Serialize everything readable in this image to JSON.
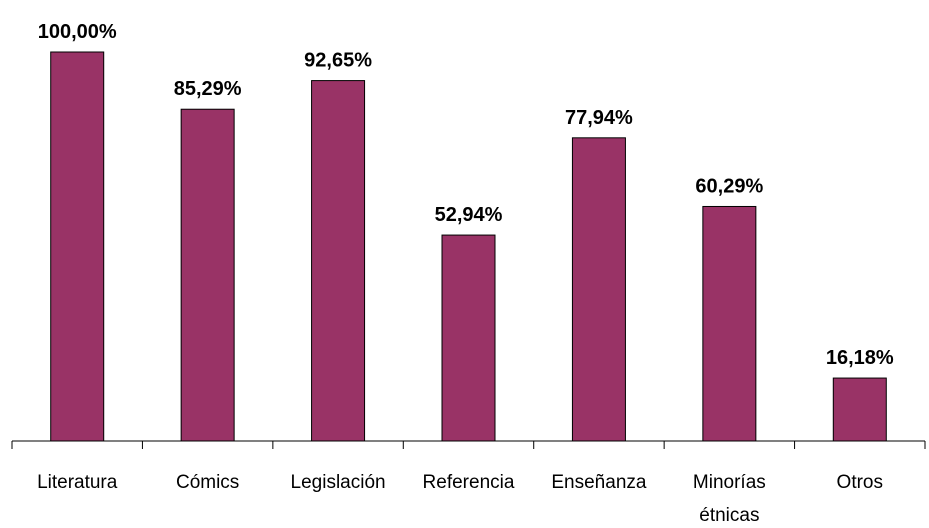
{
  "chart_data": {
    "type": "bar",
    "categories": [
      "Literatura",
      "Cómics",
      "Legislación",
      "Referencia",
      "Enseñanza",
      "Minorías étnicas",
      "Otros"
    ],
    "values": [
      100.0,
      85.29,
      92.65,
      52.94,
      77.94,
      60.29,
      16.18
    ],
    "value_labels": [
      "100,00%",
      "85,29%",
      "92,65%",
      "52,94%",
      "77,94%",
      "60,29%",
      "16,18%"
    ],
    "color": "#993366"
  }
}
